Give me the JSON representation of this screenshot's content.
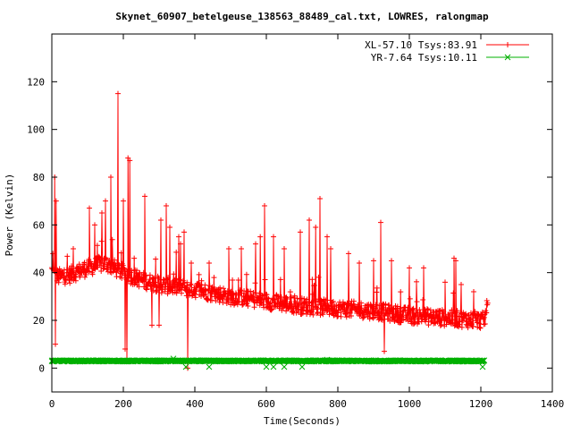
{
  "chart_data": {
    "type": "line",
    "title": "Skynet_60907_betelgeuse_138563_88489_cal.txt, LOWRES, ralongmap",
    "xlabel": "Time(Seconds)",
    "ylabel": "Power (Kelvin)",
    "xlim": [
      0,
      1400
    ],
    "ylim": [
      -10,
      140
    ],
    "xticks": [
      0,
      200,
      400,
      600,
      800,
      1000,
      1200,
      1400
    ],
    "yticks": [
      0,
      20,
      40,
      60,
      80,
      100,
      120
    ],
    "grid": false,
    "legend_position": "top-right",
    "series": [
      {
        "name": "XL-57.10 Tsys:83.91",
        "color": "#ff0000",
        "marker": "plus",
        "baseline": [
          [
            0,
            41
          ],
          [
            10,
            38
          ],
          [
            50,
            39
          ],
          [
            100,
            42
          ],
          [
            150,
            44
          ],
          [
            200,
            40
          ],
          [
            250,
            37
          ],
          [
            300,
            35
          ],
          [
            400,
            33
          ],
          [
            500,
            30
          ],
          [
            600,
            28
          ],
          [
            700,
            26
          ],
          [
            800,
            25
          ],
          [
            900,
            24
          ],
          [
            1000,
            22
          ],
          [
            1100,
            21
          ],
          [
            1200,
            20
          ],
          [
            1210,
            20
          ],
          [
            1220,
            27
          ]
        ],
        "noise": 3.5,
        "spikes": [
          [
            3,
            48
          ],
          [
            8,
            80
          ],
          [
            10,
            10
          ],
          [
            12,
            70
          ],
          [
            60,
            50
          ],
          [
            105,
            67
          ],
          [
            120,
            60
          ],
          [
            140,
            65
          ],
          [
            150,
            70
          ],
          [
            165,
            80
          ],
          [
            185,
            115
          ],
          [
            200,
            70
          ],
          [
            213,
            88
          ],
          [
            218,
            87
          ],
          [
            205,
            8
          ],
          [
            210,
            3
          ],
          [
            260,
            72
          ],
          [
            280,
            18
          ],
          [
            300,
            18
          ],
          [
            305,
            62
          ],
          [
            320,
            68
          ],
          [
            330,
            59
          ],
          [
            355,
            55
          ],
          [
            360,
            52
          ],
          [
            370,
            57
          ],
          [
            380,
            0
          ],
          [
            390,
            44
          ],
          [
            440,
            44
          ],
          [
            495,
            50
          ],
          [
            530,
            50
          ],
          [
            570,
            52
          ],
          [
            583,
            55
          ],
          [
            595,
            68
          ],
          [
            620,
            55
          ],
          [
            650,
            50
          ],
          [
            695,
            57
          ],
          [
            720,
            62
          ],
          [
            738,
            59
          ],
          [
            750,
            71
          ],
          [
            770,
            55
          ],
          [
            780,
            50
          ],
          [
            830,
            48
          ],
          [
            860,
            44
          ],
          [
            900,
            45
          ],
          [
            920,
            61
          ],
          [
            930,
            7
          ],
          [
            950,
            45
          ],
          [
            1000,
            42
          ],
          [
            1040,
            42
          ],
          [
            1100,
            36
          ],
          [
            1125,
            46
          ],
          [
            1130,
            45
          ],
          [
            1145,
            35
          ],
          [
            1180,
            32
          ]
        ]
      },
      {
        "name": "YR-7.64 Tsys:10.11",
        "color": "#00b000",
        "marker": "cross",
        "baseline": [
          [
            0,
            3
          ],
          [
            1210,
            3
          ]
        ],
        "noise": 0.25,
        "outliers": [
          [
            340,
            4
          ],
          [
            375,
            0.5
          ],
          [
            440,
            0.5
          ],
          [
            600,
            0.5
          ],
          [
            620,
            0.5
          ],
          [
            650,
            0.5
          ],
          [
            700,
            0.5
          ],
          [
            770,
            3.5
          ],
          [
            1205,
            0.5
          ]
        ]
      }
    ]
  }
}
